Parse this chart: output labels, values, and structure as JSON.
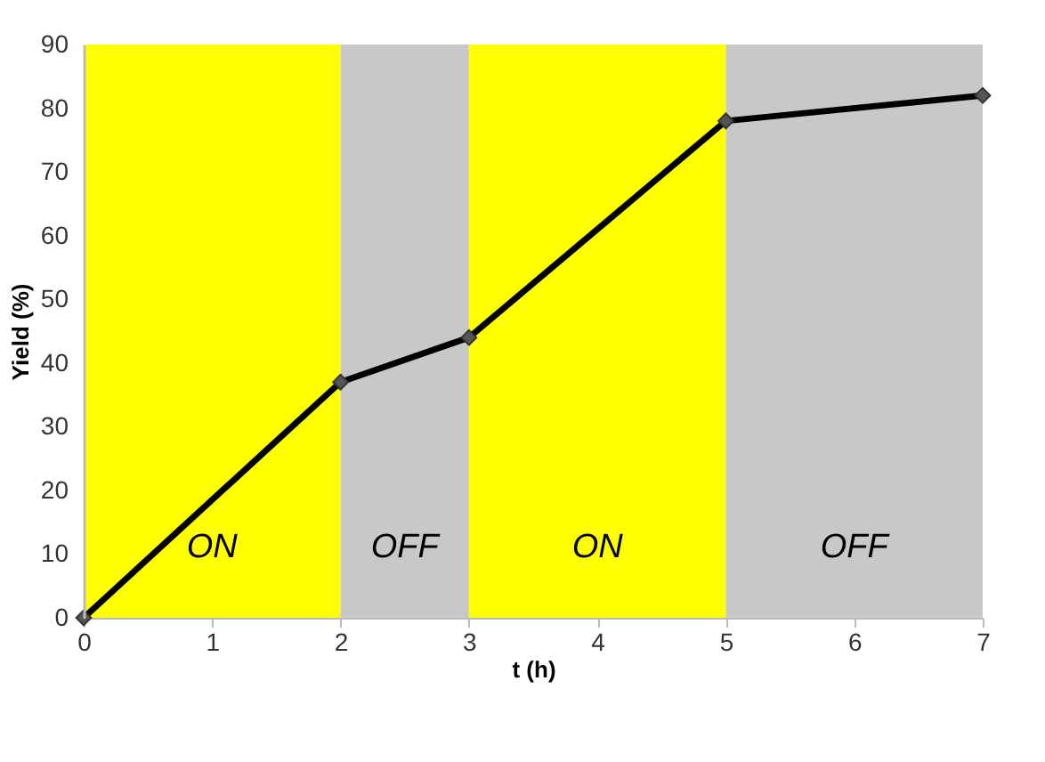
{
  "chart_data": {
    "type": "line",
    "xlabel": "t (h)",
    "ylabel": "Yield (%)",
    "x": [
      0,
      2,
      3,
      5,
      7
    ],
    "series": [
      {
        "color": "#000000",
        "values": [
          0,
          37,
          44,
          78,
          82
        ]
      }
    ],
    "marker": "diamond",
    "line_style": "solid",
    "grid": false,
    "xlim": [
      0,
      7
    ],
    "xticks": [
      0,
      1,
      2,
      3,
      4,
      5,
      6,
      7
    ],
    "ylim": [
      0,
      90
    ],
    "yticks": [
      0,
      10,
      20,
      30,
      40,
      50,
      60,
      70,
      80,
      90
    ],
    "bands": [
      {
        "axis": "x",
        "from": 0,
        "to": 2,
        "label": "ON",
        "color": "#ffff00"
      },
      {
        "axis": "x",
        "from": 2,
        "to": 3,
        "label": "OFF",
        "color": "#c8c8c8"
      },
      {
        "axis": "x",
        "from": 3,
        "to": 5,
        "label": "ON",
        "color": "#ffff00"
      },
      {
        "axis": "x",
        "from": 5,
        "to": 7,
        "label": "OFF",
        "color": "#c8c8c8"
      }
    ]
  }
}
